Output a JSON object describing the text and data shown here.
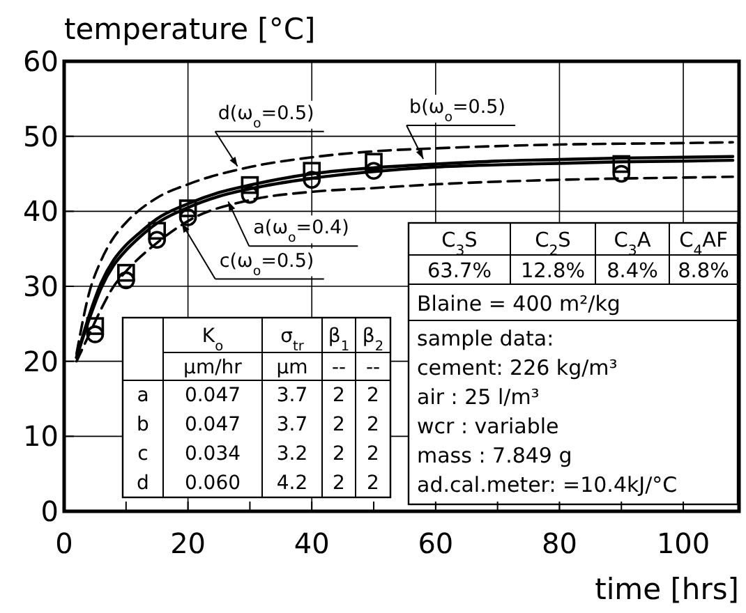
{
  "chart_data": {
    "type": "line",
    "xlabel": "time [hrs]",
    "ylabel": "temperature [°C]",
    "xlim": [
      0,
      109
    ],
    "ylim": [
      0,
      60
    ],
    "xticks": [
      0,
      {
        "value": 10,
        "label": null
      },
      20,
      {
        "value": 30,
        "label": null
      },
      40,
      {
        "value": 50,
        "label": null
      },
      60,
      {
        "value": 70,
        "label": null
      },
      80,
      {
        "value": 90,
        "label": null
      },
      100
    ],
    "yticks": [
      0,
      10,
      20,
      30,
      40,
      50,
      60
    ],
    "grid": true,
    "series": [
      {
        "type": "scatter",
        "marker": "square",
        "color": "#000000",
        "x": [
          5,
          10,
          15,
          20,
          30,
          40,
          50,
          90
        ],
        "values": [
          24.7,
          31.8,
          37.4,
          40.4,
          43.5,
          45.4,
          46.6,
          46.3
        ]
      },
      {
        "type": "scatter",
        "marker": "circle",
        "color": "#000000",
        "x": [
          5,
          10,
          15,
          20,
          30,
          40,
          50,
          90
        ],
        "values": [
          23.6,
          30.8,
          36.2,
          39.2,
          42.2,
          44.2,
          45.4,
          45.0
        ]
      },
      {
        "line_style": "solid",
        "color": "#000000",
        "x": [
          2,
          4,
          6,
          8,
          10,
          12,
          15,
          20,
          25,
          30,
          40,
          50,
          60,
          70,
          80,
          90,
          100,
          108
        ],
        "values": [
          20.5,
          25.5,
          29.8,
          32.8,
          34.8,
          36.4,
          38.4,
          40.5,
          42,
          43,
          44.4,
          45.3,
          45.9,
          46.2,
          46.4,
          46.6,
          46.7,
          46.8
        ]
      },
      {
        "line_style": "solid",
        "color": "#000000",
        "x": [
          2,
          4,
          6,
          8,
          10,
          12,
          15,
          20,
          25,
          30,
          40,
          50,
          60,
          70,
          80,
          90,
          100,
          108
        ],
        "values": [
          20.5,
          26,
          30.5,
          33.5,
          35.5,
          37,
          39,
          41,
          42.5,
          43.5,
          45,
          45.8,
          46.3,
          46.7,
          46.9,
          47.1,
          47.2,
          47.3
        ]
      },
      {
        "line_style": "dashed",
        "color": "#000000",
        "x": [
          2,
          4,
          6,
          8,
          10,
          15,
          20,
          30,
          40,
          50,
          60,
          80,
          100,
          108
        ],
        "values": [
          20,
          23.5,
          27,
          30,
          32,
          35.8,
          38.7,
          41.5,
          42.6,
          43.1,
          43.6,
          44.2,
          44.5,
          44.6
        ]
      },
      {
        "line_style": "dashed",
        "color": "#000000",
        "x": [
          2,
          4,
          6,
          8,
          10,
          15,
          20,
          30,
          40,
          50,
          60,
          80,
          100,
          108
        ],
        "values": [
          21,
          29,
          33.5,
          36.5,
          38.5,
          41.8,
          43.6,
          45.9,
          47.2,
          48,
          48.4,
          48.9,
          49.1,
          49.2
        ]
      }
    ],
    "annotations": [
      {
        "text": "d(ω$_{o}$=0.5)",
        "x": 28,
        "y": 46
      },
      {
        "text": "b(ω$_{o}$=0.5)",
        "x": 58,
        "y": 47
      },
      {
        "text": "a(ω$_{o}$=0.4)",
        "x": 26.5,
        "y": 41.3
      },
      {
        "text": "c(ω$_{o}$=0.5)",
        "x": 19,
        "y": 38.4
      },
      "K$_{o}$",
      "σ$_{tr}$",
      "β$_{1}$",
      "β$_{2}$",
      "µm/hr",
      "µm",
      "--",
      "--",
      "a",
      "0.047",
      "3.7",
      "2",
      "2",
      "b",
      "0.047",
      "3.7",
      "2",
      "2",
      "c",
      "0.034",
      "3.2",
      "2",
      "2",
      "d",
      "0.060",
      "4.2",
      "2",
      "2",
      "C$_{3}$S",
      "C$_{2}$S",
      "C$_{3}$A",
      "C$_{4}$AF",
      "63.7%",
      "12.8%",
      "8.4%",
      "8.8%",
      "Blaine = 400 m²/kg",
      "sample data:",
      "cement: 226 kg/m³",
      "air : 25 l/m³",
      "wcr : variable",
      "mass : 7.849 g",
      "ad.cal.meter: =10.4kJ/°C"
    ]
  }
}
